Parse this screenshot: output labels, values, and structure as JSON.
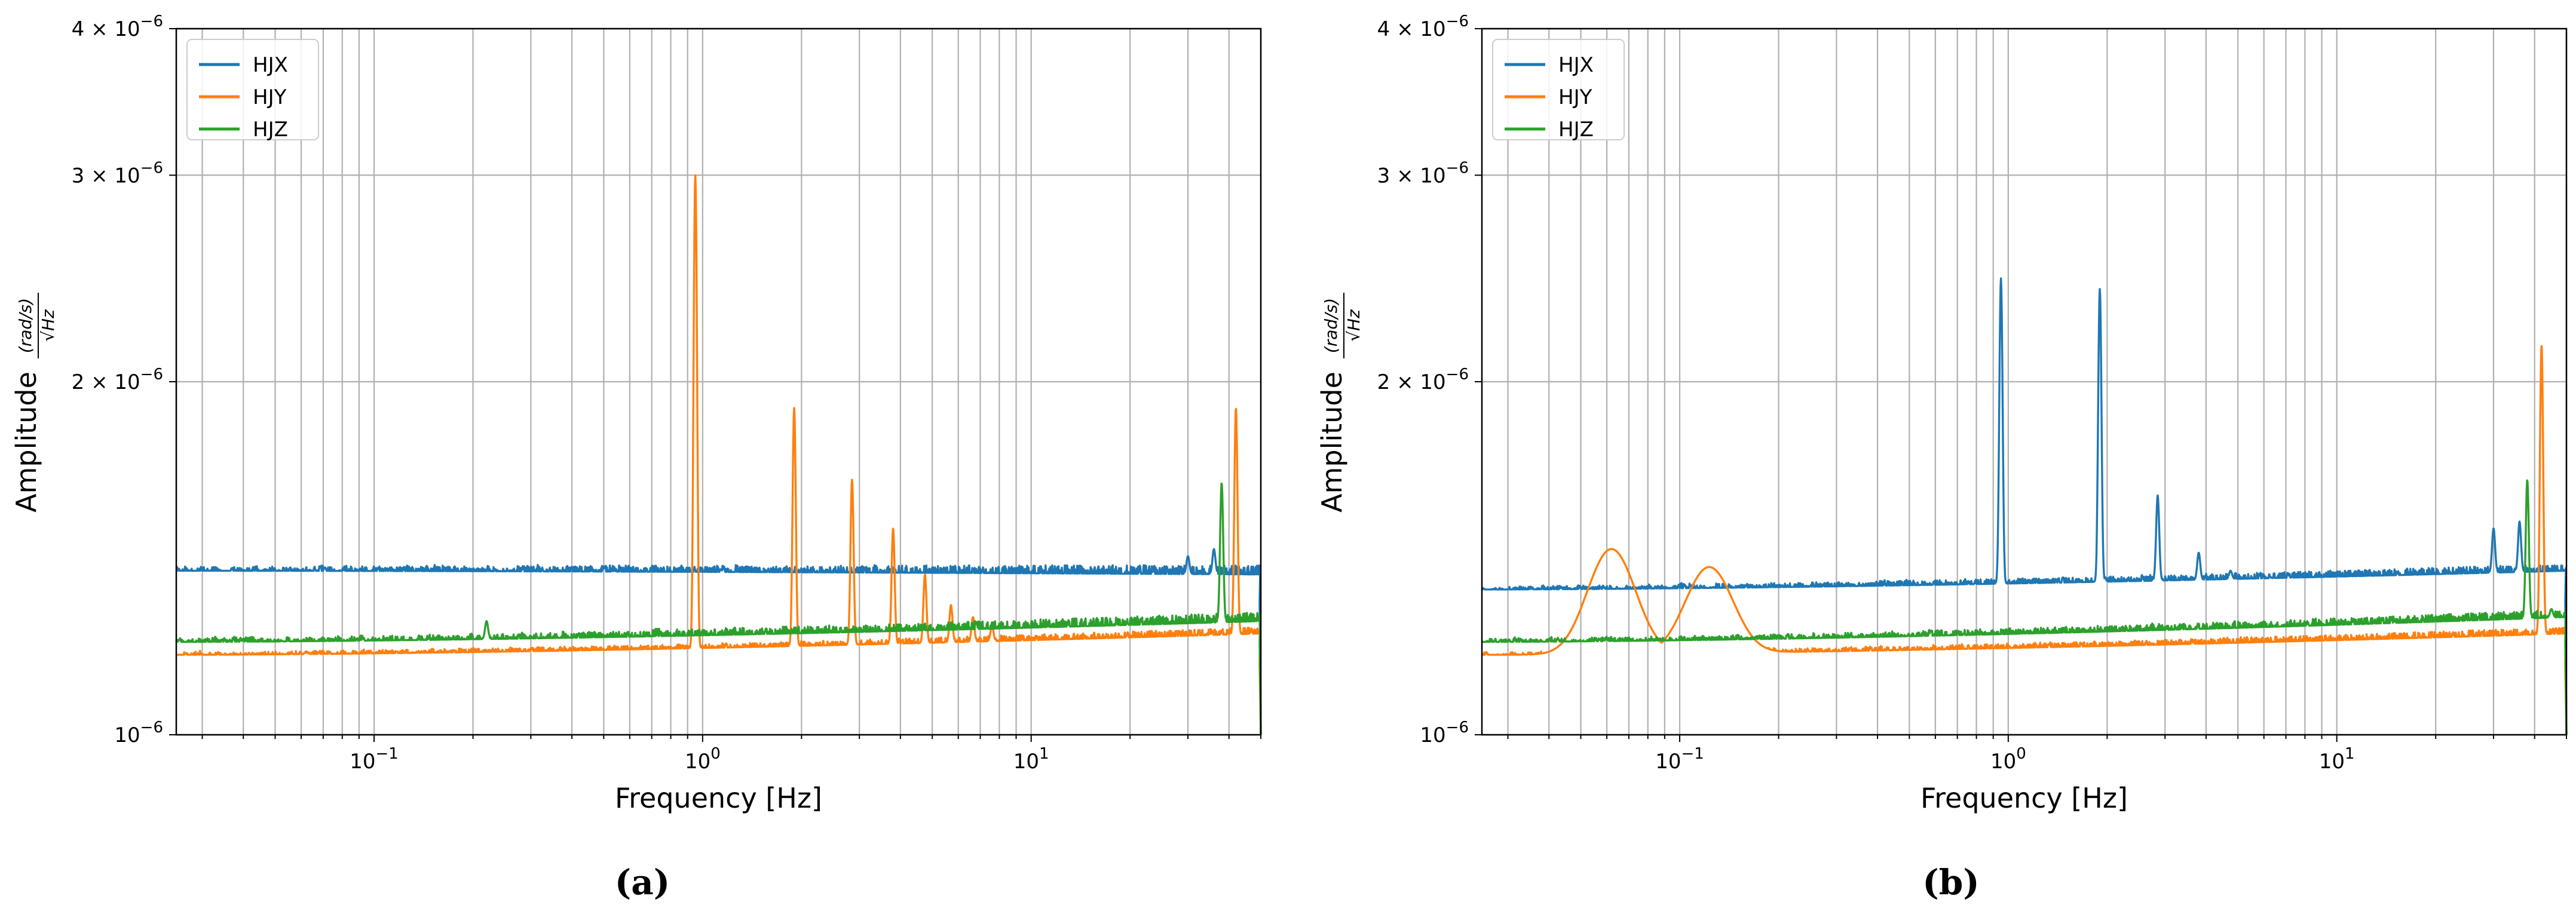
{
  "captions": [
    "(a)",
    "(b)"
  ],
  "chart_data": [
    {
      "type": "line",
      "panel": "(a)",
      "xscale": "log",
      "yscale": "log",
      "xlabel": "Frequency [Hz]",
      "ylabel": "Amplitude",
      "ylabel_fraction": {
        "numerator": "(rad/s)",
        "denominator": "Hz"
      },
      "xlim": [
        0.025,
        50
      ],
      "ylim": [
        1e-06,
        4e-06
      ],
      "xticks": [
        {
          "value": 0.1,
          "base": "10",
          "exp": "−1"
        },
        {
          "value": 1,
          "base": "10",
          "exp": "0"
        },
        {
          "value": 10,
          "base": "10",
          "exp": "1"
        }
      ],
      "yticks": [
        {
          "value": 1e-06,
          "mantissa": "",
          "base": "10",
          "exp": "−6"
        },
        {
          "value": 2e-06,
          "mantissa": "2 × ",
          "base": "10",
          "exp": "−6"
        },
        {
          "value": 3e-06,
          "mantissa": "3 × ",
          "base": "10",
          "exp": "−6"
        },
        {
          "value": 4e-06,
          "mantissa": "4 × ",
          "base": "10",
          "exp": "−6"
        }
      ],
      "grid": true,
      "legend_position": "top-left",
      "series": [
        {
          "name": "HJX",
          "color": "#1f77b4",
          "baseline_start": 1.38e-06,
          "baseline_end": 1.37e-06,
          "noise": 2e-08,
          "droop_start": 1.3e-06,
          "peaks": [
            [
              30,
              1.42e-06
            ],
            [
              36,
              1.44e-06
            ]
          ]
        },
        {
          "name": "HJY",
          "color": "#ff7f0e",
          "baseline_start": 1.17e-06,
          "baseline_end": 1.22e-06,
          "noise": 1.2e-08,
          "droop_start": 1.15e-06,
          "peaks": [
            [
              0.95,
              3e-06
            ],
            [
              1.9,
              1.9e-06
            ],
            [
              2.85,
              1.65e-06
            ],
            [
              3.8,
              1.5e-06
            ],
            [
              4.75,
              1.37e-06
            ],
            [
              5.7,
              1.29e-06
            ],
            [
              6.65,
              1.26e-06
            ],
            [
              7.6,
              1.24e-06
            ],
            [
              42,
              1.9e-06
            ]
          ]
        },
        {
          "name": "HJZ",
          "color": "#2ca02c",
          "baseline_start": 1.2e-06,
          "baseline_end": 1.25e-06,
          "noise": 1.8e-08,
          "droop_start": 1.2e-06,
          "peaks": [
            [
              0.22,
              1.25e-06
            ],
            [
              38,
              1.64e-06
            ]
          ]
        }
      ]
    },
    {
      "type": "line",
      "panel": "(b)",
      "xscale": "log",
      "yscale": "log",
      "xlabel": "Frequency [Hz]",
      "ylabel": "Amplitude",
      "ylabel_fraction": {
        "numerator": "(rad/s)",
        "denominator": "Hz"
      },
      "xlim": [
        0.025,
        50
      ],
      "ylim": [
        1e-06,
        4e-06
      ],
      "xticks": [
        {
          "value": 0.1,
          "base": "10",
          "exp": "−1"
        },
        {
          "value": 1,
          "base": "10",
          "exp": "0"
        },
        {
          "value": 10,
          "base": "10",
          "exp": "1"
        }
      ],
      "yticks": [
        {
          "value": 1e-06,
          "mantissa": "",
          "base": "10",
          "exp": "−6"
        },
        {
          "value": 2e-06,
          "mantissa": "2 × ",
          "base": "10",
          "exp": "−6"
        },
        {
          "value": 3e-06,
          "mantissa": "3 × ",
          "base": "10",
          "exp": "−6"
        },
        {
          "value": 4e-06,
          "mantissa": "4 × ",
          "base": "10",
          "exp": "−6"
        }
      ],
      "grid": true,
      "legend_position": "top-left",
      "series": [
        {
          "name": "HJX",
          "color": "#1f77b4",
          "baseline_start": 1.33e-06,
          "baseline_end": 1.38e-06,
          "noise": 1.5e-08,
          "droop_start": 1.3e-06,
          "peaks": [
            [
              0.95,
              2.45e-06
            ],
            [
              1.9,
              2.4e-06
            ],
            [
              2.85,
              1.6e-06
            ],
            [
              3.8,
              1.43e-06
            ],
            [
              4.75,
              1.38e-06
            ],
            [
              30,
              1.5e-06
            ],
            [
              36,
              1.52e-06
            ]
          ]
        },
        {
          "name": "HJY",
          "color": "#ff7f0e",
          "baseline_start": 1.17e-06,
          "baseline_end": 1.22e-06,
          "noise": 1.2e-08,
          "droop_start": 1.15e-06,
          "peaks": [
            [
              0.062,
              1.44e-06
            ],
            [
              0.123,
              1.39e-06
            ],
            [
              42,
              2.15e-06
            ]
          ]
        },
        {
          "name": "HJZ",
          "color": "#2ca02c",
          "baseline_start": 1.2e-06,
          "baseline_end": 1.26e-06,
          "noise": 1.5e-08,
          "droop_start": 1.2e-06,
          "peaks": [
            [
              38,
              1.65e-06
            ],
            [
              45,
              1.28e-06
            ]
          ]
        }
      ]
    }
  ]
}
